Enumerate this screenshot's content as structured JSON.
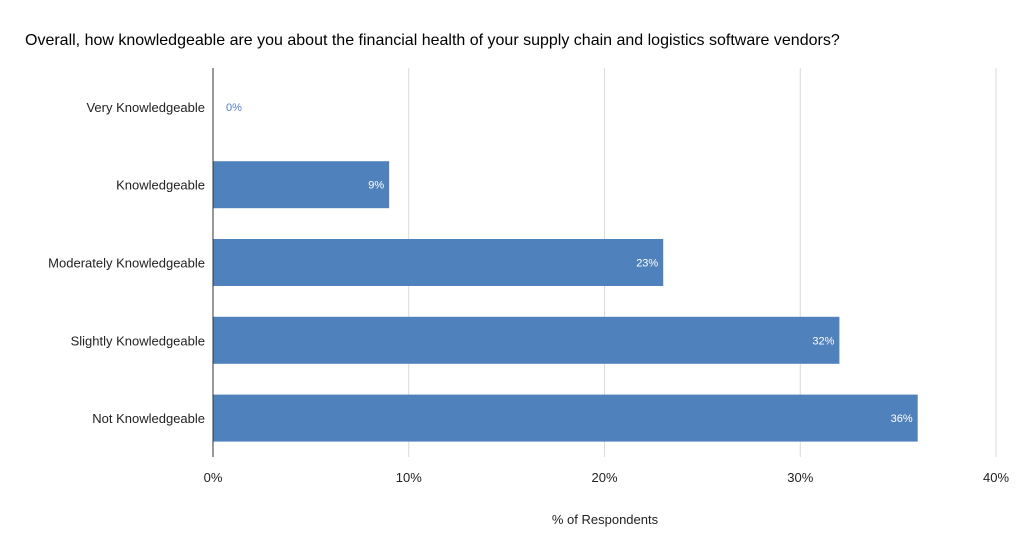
{
  "chart_data": {
    "type": "bar",
    "orientation": "horizontal",
    "title": "Overall, how knowledgeable are you about the financial health of your supply chain and logistics software vendors?",
    "xlabel": "% of Respondents",
    "ylabel": "",
    "categories": [
      "Very Knowledgeable",
      "Knowledgeable",
      "Moderately Knowledgeable",
      "Slightly Knowledgeable",
      "Not Knowledgeable"
    ],
    "values": [
      0,
      9,
      23,
      32,
      36
    ],
    "data_labels": [
      "0%",
      "9%",
      "23%",
      "32%",
      "36%"
    ],
    "xlim": [
      0,
      40
    ],
    "x_ticks": [
      0,
      10,
      20,
      30,
      40
    ],
    "x_tick_labels": [
      "0%",
      "10%",
      "20%",
      "30%",
      "40%"
    ],
    "grid": true,
    "legend": "none",
    "colors": {
      "bar": "#4f81bd",
      "bar_label_inside": "#ffffff",
      "bar_label_outside": "#4f81bd",
      "grid": "#d9d9d9",
      "axis": "#333333"
    }
  }
}
